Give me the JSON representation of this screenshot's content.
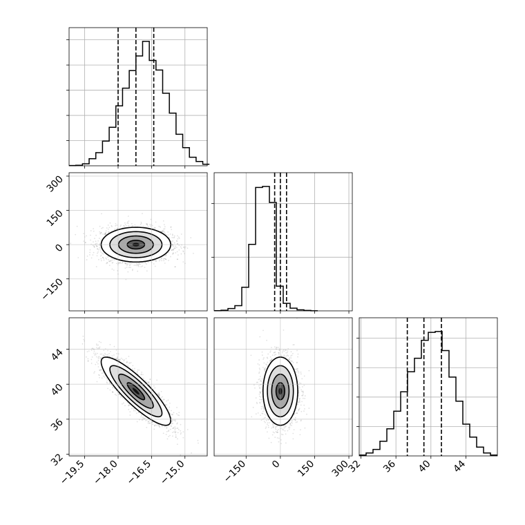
{
  "chart_data": {
    "type": "corner",
    "grid": true,
    "parameters": [
      {
        "range": [
          -20.2,
          -14.0
        ],
        "ticks": [
          -19.5,
          -18.0,
          -16.5,
          -15.0
        ],
        "tick_labels": [
          "−19.5",
          "−18.0",
          "−16.5",
          "−15.0"
        ],
        "quantiles": [
          -18.0,
          -17.2,
          -16.4
        ],
        "histogram": {
          "bin_start": -20.2,
          "bin_width": 0.3,
          "counts": [
            1,
            2,
            8,
            28,
            52,
            98,
            153,
            238,
            308,
            378,
            436,
            494,
            418,
            380,
            288,
            209,
            125,
            72,
            34,
            17,
            6
          ]
        }
      },
      {
        "range": [
          -290,
          315
        ],
        "ticks": [
          -150,
          0,
          150,
          300
        ],
        "tick_labels": [
          "−150",
          "0",
          "150",
          "300"
        ],
        "quantiles": [
          -25,
          0,
          27
        ],
        "histogram": {
          "bin_start": -290,
          "bin_width": 30.25,
          "counts": [
            2,
            6,
            22,
            48,
            220,
            620,
            1150,
            1160,
            1010,
            230,
            70,
            25,
            10,
            4,
            1
          ]
        }
      },
      {
        "range": [
          31.8,
          47.6
        ],
        "ticks": [
          32,
          36,
          40,
          44
        ],
        "tick_labels": [
          "32",
          "36",
          "40",
          "44"
        ],
        "quantiles": [
          37.3,
          39.2,
          41.2
        ],
        "histogram": {
          "bin_start": 31.8,
          "bin_width": 0.79,
          "counts": [
            3,
            10,
            22,
            50,
            92,
            152,
            218,
            286,
            332,
            393,
            420,
            423,
            358,
            268,
            186,
            108,
            64,
            30,
            10,
            3
          ]
        }
      }
    ],
    "joint": [
      {
        "x_param": 0,
        "y_param": 1,
        "center": [
          -17.2,
          0
        ],
        "sd": [
          0.78,
          38
        ],
        "corr": 0,
        "contour_sigma": [
          0.5,
          1.0,
          1.5,
          2.0
        ]
      },
      {
        "x_param": 0,
        "y_param": 2,
        "center": [
          -17.2,
          39.2
        ],
        "sd": [
          0.78,
          1.95
        ],
        "corr": -0.86,
        "contour_sigma": [
          0.5,
          1.0,
          1.5,
          2.0
        ]
      },
      {
        "x_param": 1,
        "y_param": 2,
        "center": [
          0,
          39.2
        ],
        "sd": [
          38,
          1.95
        ],
        "corr": 0,
        "contour_sigma": [
          0.5,
          1.0,
          1.5,
          2.0
        ]
      }
    ]
  }
}
